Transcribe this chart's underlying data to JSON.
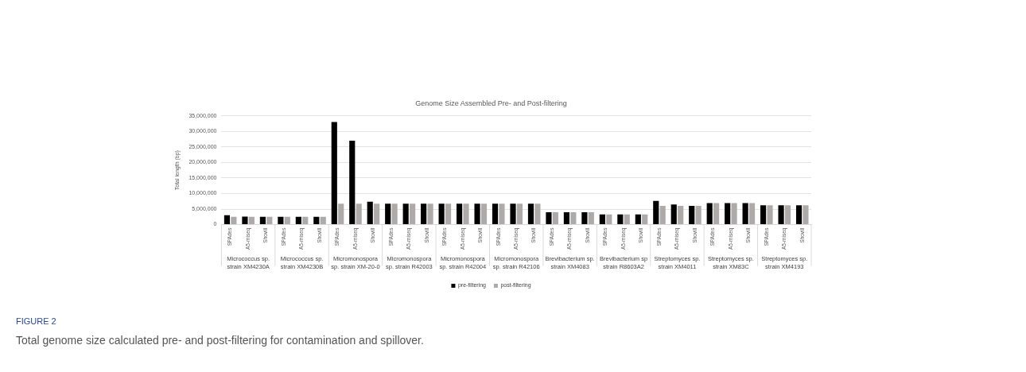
{
  "chart_data": {
    "type": "bar",
    "title": "Genome Size Assembled Pre- and Post-filtering",
    "ylabel": "Total length (bp)",
    "categories": [
      "SPAdes",
      "A5-miseq",
      "Shovill",
      "SPAdes",
      "A5-miseq",
      "Shovill",
      "SPAdes",
      "A5-miseq",
      "Shovill",
      "SPAdes",
      "A5-miseq",
      "Shovill",
      "SPAdes",
      "A5-miseq",
      "Shovill",
      "SPAdes",
      "A5-miseq",
      "Shovill",
      "SPAdes",
      "A5-miseq",
      "Shovill",
      "SPAdes",
      "A5-miseq",
      "Shovill",
      "SPAdes",
      "A5-miseq",
      "Shovill",
      "SPAdes",
      "A5-miseq",
      "Shovill",
      "SPAdes",
      "A5-miseq",
      "Shovill"
    ],
    "series": [
      {
        "name": "pre-filtering",
        "color": "#000000",
        "values": [
          3000000,
          2600000,
          2500000,
          2500000,
          2500000,
          2500000,
          33000000,
          27000000,
          7400000,
          6700000,
          6700000,
          6700000,
          6700000,
          6700000,
          6700000,
          6700000,
          6700000,
          6700000,
          4000000,
          4000000,
          4000000,
          3300000,
          3300000,
          3300000,
          7600000,
          6500000,
          6000000,
          6900000,
          6900000,
          6900000,
          6200000,
          6200000,
          6200000
        ]
      },
      {
        "name": "post-filtering",
        "color": "#aeaaaa",
        "values": [
          2500000,
          2500000,
          2500000,
          2500000,
          2500000,
          2500000,
          6700000,
          6700000,
          6700000,
          6700000,
          6700000,
          6700000,
          6700000,
          6700000,
          6700000,
          6700000,
          6700000,
          6700000,
          4000000,
          4000000,
          4000000,
          3300000,
          3300000,
          3300000,
          6000000,
          6000000,
          6000000,
          6900000,
          6900000,
          6900000,
          6200000,
          6200000,
          6200000
        ]
      }
    ],
    "ylim": [
      0,
      35000000
    ],
    "yticks": [
      {
        "value": 0,
        "label": "0"
      },
      {
        "value": 5000000,
        "label": "5,000,000"
      },
      {
        "value": 10000000,
        "label": "10,000,000"
      },
      {
        "value": 15000000,
        "label": "15,000,000"
      },
      {
        "value": 20000000,
        "label": "20,000,000"
      },
      {
        "value": 25000000,
        "label": "25,000,000"
      },
      {
        "value": 30000000,
        "label": "30,000,000"
      },
      {
        "value": 35000000,
        "label": "35,000,000"
      }
    ],
    "grid": "y",
    "legend": "bottom",
    "annotations": [
      "Micrococcus sp.\nstrain XM4230A",
      "Micrococcus sp.\nstrain XM4230B",
      "Micromonospora\nsp. strain XM-20-0",
      "Micromonospora\nsp. strain R42003",
      "Micromonospora\nsp. strain R42004",
      "Micromonospora\nsp. strain R42106",
      "Brevibacterium sp.\nstrain XM4083",
      "Brevibacterium sp\nstrain R8603A2",
      "Streptomyces sp.\nstrain XM4011",
      "Streptomyces sp.\nstrain XM83C",
      "Streptomyces sp.\nstrain XM4193",
      "FIGURE 2",
      "Total genome size calculated pre- and post-filtering for contamination and spillover."
    ]
  }
}
